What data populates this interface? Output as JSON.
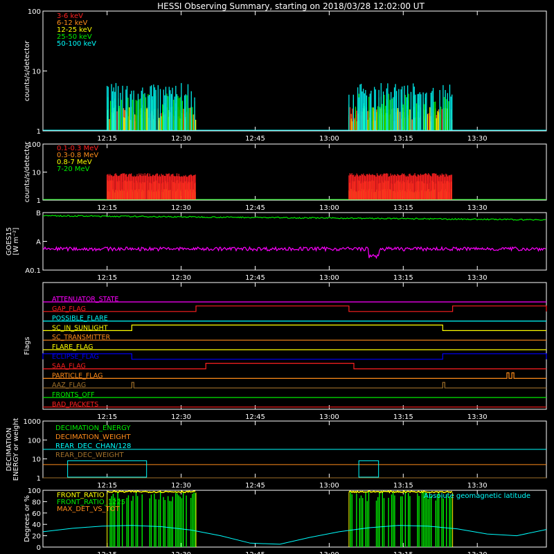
{
  "page": {
    "title": "HESSI Observing Summary, starting on 2018/03/28 12:02:00 UT"
  },
  "time_axis": {
    "start": "12:02",
    "end": "13:44",
    "ticks": [
      "12:15",
      "12:30",
      "12:45",
      "13:00",
      "13:15",
      "13:30"
    ]
  },
  "colors": {
    "background": "#000000",
    "axes": "#ffffff",
    "red": "#ff2020",
    "orange": "#ff8c1a",
    "yellow": "#ffff00",
    "green": "#00ee00",
    "cyan": "#00ffff",
    "magenta": "#ff00ff",
    "blue": "#0000ff",
    "brown": "#a0702a"
  },
  "chart_data": [
    {
      "type": "line",
      "id": "hxr_low",
      "ylabel": "counts/s/detector",
      "ylog": true,
      "ylim": [
        1,
        100
      ],
      "yticks": [
        "1",
        "10",
        "100"
      ],
      "legend_placement": "top-left",
      "series": [
        {
          "name": "3-6 keV",
          "color": "#ff2020"
        },
        {
          "name": "6-12 keV",
          "color": "#ff8c1a"
        },
        {
          "name": "12-25 keV",
          "color": "#ffff00"
        },
        {
          "name": "25-50 keV",
          "color": "#00ee00"
        },
        {
          "name": "50-100 keV",
          "color": "#00ffff"
        }
      ],
      "data_intervals": [
        [
          "12:15",
          "12:33"
        ],
        [
          "13:04",
          "13:25"
        ]
      ],
      "series_levels": [
        1.8,
        1.8,
        1.8,
        3.0,
        4.5
      ]
    },
    {
      "type": "line",
      "id": "gamma",
      "ylabel": "counts/s/detector",
      "ylog": true,
      "ylim": [
        1,
        100
      ],
      "yticks": [
        "1",
        "10",
        "100"
      ],
      "legend_placement": "top-left",
      "series": [
        {
          "name": "0.1-0.3 MeV",
          "color": "#ff2020"
        },
        {
          "name": "0.3-0.8 MeV",
          "color": "#ff8c1a"
        },
        {
          "name": "0.8-7 MeV",
          "color": "#ffff00"
        },
        {
          "name": "7-20 MeV",
          "color": "#00ee00"
        }
      ],
      "data_intervals": [
        [
          "12:15",
          "12:33"
        ],
        [
          "13:04",
          "13:25"
        ]
      ],
      "series_levels": [
        8.0,
        4.5,
        2.2,
        1.0
      ]
    },
    {
      "type": "line",
      "id": "goes",
      "ylabel": "GOES15",
      "yunit": "[W m⁻²]",
      "ylog": true,
      "ylim": [
        1e-08,
        1e-06
      ],
      "yticks": [
        "A0.1",
        "A",
        "B"
      ],
      "series": [
        {
          "color": "#00ee00",
          "start": 7.8e-07,
          "end": 5.6e-07
        },
        {
          "color": "#ff00ff",
          "level": 5.5e-08
        }
      ]
    },
    {
      "type": "table",
      "id": "flags",
      "ylabel": "Flags",
      "rows": [
        {
          "name": "ATTENUATOR_STATE",
          "color": "#ff00ff",
          "segments": []
        },
        {
          "name": "GAP_FLAG",
          "color": "#ff2020",
          "segments": [
            [
              "12:33",
              "13:04"
            ],
            [
              "13:25",
              "13:44"
            ]
          ]
        },
        {
          "name": "POSSIBLE_FLARE",
          "color": "#00ffff",
          "segments": []
        },
        {
          "name": "SC_IN_SUNLIGHT",
          "color": "#ffff00",
          "segments": [
            [
              "12:20",
              "13:23"
            ]
          ]
        },
        {
          "name": "SC_TRANSMITTER",
          "color": "#ff8c1a",
          "segments": []
        },
        {
          "name": "FLARE_FLAG",
          "color": "#ffff00",
          "segments": []
        },
        {
          "name": "ECLIPSE_FLAG",
          "color": "#0000ff",
          "segments": [
            [
              "12:02",
              "12:20"
            ],
            [
              "13:23",
              "13:44"
            ]
          ]
        },
        {
          "name": "SAA_FLAG",
          "color": "#ff2020",
          "segments": [
            [
              "12:35",
              "13:05"
            ]
          ]
        },
        {
          "name": "PARTICLE_FLAG",
          "color": "#ff8c1a",
          "segments": [
            [
              "13:36",
              "13:36"
            ],
            [
              "13:37",
              "13:37"
            ]
          ]
        },
        {
          "name": "AAZ_FLAG",
          "color": "#a0702a",
          "segments": [
            [
              "12:20",
              "12:20"
            ],
            [
              "13:23",
              "13:23"
            ]
          ]
        },
        {
          "name": "FRONTS_OFF",
          "color": "#00ee00",
          "segments": []
        },
        {
          "name": "BAD_PACKETS",
          "color": "#ff2020",
          "segments": []
        }
      ]
    },
    {
      "type": "line",
      "id": "decimation",
      "ylabel": "DECIMATION\nENERGY or weight",
      "ylog": true,
      "ylim": [
        1,
        1000
      ],
      "yticks": [
        "1",
        "10",
        "100",
        "1000"
      ],
      "legend_placement": "top-left",
      "series": [
        {
          "name": "DECIMATION_ENERGY",
          "color": "#00ee00",
          "level": 1
        },
        {
          "name": "DECIMATION_WEIGHT",
          "color": "#ff8c1a",
          "level": 5
        },
        {
          "name": "REAR_DEC_CHAN/128",
          "color": "#00ffff",
          "level": 32,
          "boxes": [
            [
              "12:07",
              "12:23"
            ],
            [
              "13:06",
              "13:10"
            ]
          ],
          "box_level": 8
        },
        {
          "name": "REAR_DEC_WEIGHT",
          "color": "#a0702a",
          "level": 1
        }
      ]
    },
    {
      "type": "line",
      "id": "ratios",
      "ylabel": "Degrees or %",
      "ylim": [
        0,
        100
      ],
      "yticks": [
        "0",
        "20",
        "40",
        "60",
        "80",
        "100"
      ],
      "legend_placement": "top-left",
      "series": [
        {
          "name": "FRONT_RATIO",
          "color": "#ffff00"
        },
        {
          "name": "FRONT_RATIO_1225",
          "color": "#00ee00"
        },
        {
          "name": "MAX_DET_VS_TOT",
          "color": "#ff8c1a"
        },
        {
          "name": "Absolute geomagnetic latitude",
          "color": "#00ffff"
        }
      ],
      "data_intervals": [
        [
          "12:15",
          "12:33"
        ],
        [
          "13:04",
          "13:25"
        ]
      ],
      "geomag": {
        "x": [
          "12:02",
          "12:08",
          "12:14",
          "12:20",
          "12:26",
          "12:32",
          "12:38",
          "12:44",
          "12:50",
          "12:56",
          "13:02",
          "13:08",
          "13:14",
          "13:20",
          "13:26",
          "13:32",
          "13:38",
          "13:44"
        ],
        "y": [
          27,
          33,
          37,
          38,
          36,
          30,
          20,
          7,
          5,
          17,
          27,
          34,
          38,
          37,
          32,
          23,
          20,
          31
        ]
      }
    }
  ]
}
